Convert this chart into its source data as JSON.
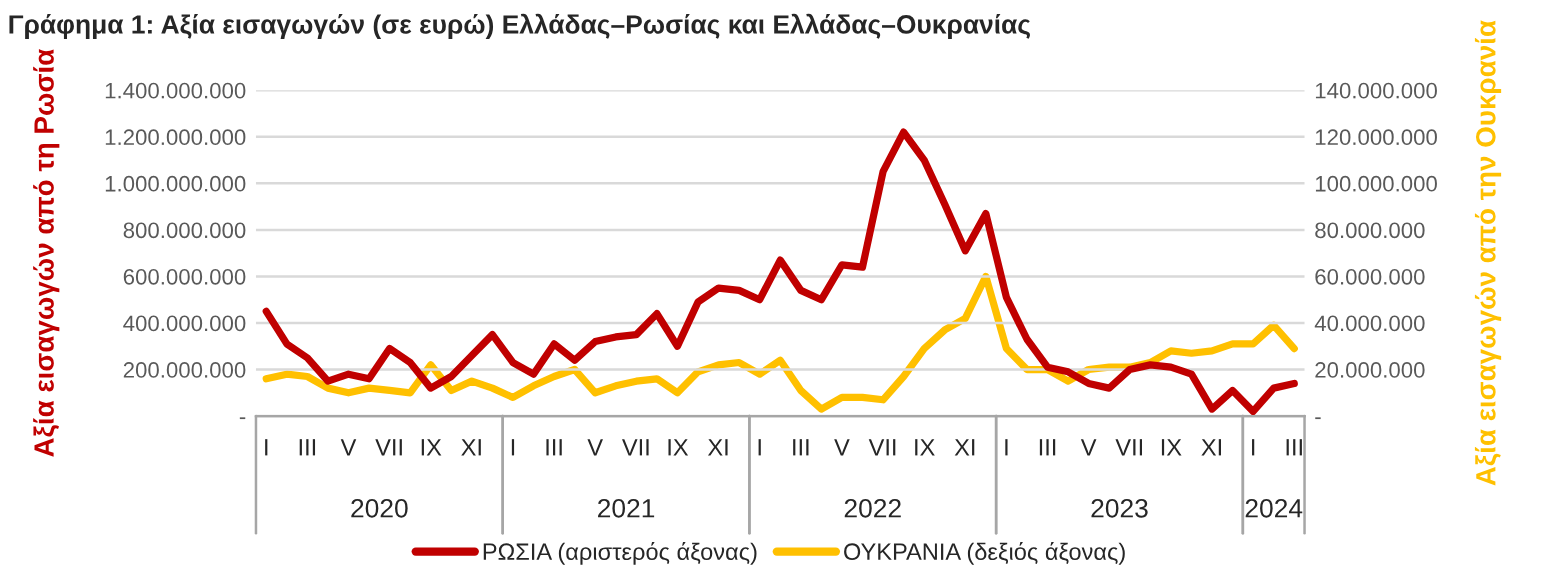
{
  "chart_data": {
    "type": "line",
    "title": "Γράφημα 1: Αξία εισαγωγών (σε ευρώ) Ελλάδας–Ρωσίας και Ελλάδας–Ουκρανίας",
    "ylabel": "Αξία εισαγωγών από τη Ρωσία",
    "y2label": "Αξία εισαγωγών από την Ουκρανία",
    "categories": [
      "I",
      null,
      "III",
      null,
      "V",
      null,
      "VII",
      null,
      "IX",
      null,
      "XI",
      null,
      "I",
      null,
      "III",
      null,
      "V",
      null,
      "VII",
      null,
      "IX",
      null,
      "XI",
      null,
      "I",
      null,
      "III",
      null,
      "V",
      null,
      "VII",
      null,
      "IX",
      null,
      "XI",
      null,
      "I",
      null,
      "III",
      null,
      "V",
      null,
      "VII",
      null,
      "IX",
      null,
      "XI",
      null,
      "I",
      null,
      "III"
    ],
    "annotations": [
      "2020",
      "2021",
      "2022",
      "2023",
      "2024"
    ],
    "series": [
      {
        "name": "ΡΩΣΙΑ (αριστερός άξονας)",
        "color": "#c00000",
        "values": [
          450000000,
          310000000,
          250000000,
          150000000,
          180000000,
          160000000,
          290000000,
          230000000,
          120000000,
          170000000,
          260000000,
          350000000,
          230000000,
          180000000,
          310000000,
          240000000,
          320000000,
          340000000,
          350000000,
          440000000,
          300000000,
          490000000,
          550000000,
          540000000,
          500000000,
          670000000,
          540000000,
          500000000,
          650000000,
          640000000,
          1050000000,
          1220000000,
          1100000000,
          910000000,
          710000000,
          870000000,
          510000000,
          330000000,
          210000000,
          190000000,
          140000000,
          120000000,
          200000000,
          220000000,
          210000000,
          180000000,
          30000000,
          110000000,
          20000000,
          120000000,
          140000000
        ]
      },
      {
        "name": "ΟΥΚΡΑΝΙΑ (δεξιός άξονας)",
        "color": "#ffc000",
        "axis": "y2",
        "values": [
          16000000,
          18000000,
          17000000,
          12000000,
          10000000,
          12000000,
          11000000,
          10000000,
          22000000,
          11000000,
          15000000,
          12000000,
          8000000,
          13000000,
          17000000,
          20000000,
          10000000,
          13000000,
          15000000,
          16000000,
          10000000,
          19000000,
          22000000,
          23000000,
          18000000,
          24000000,
          11000000,
          3000000,
          8000000,
          8000000,
          7000000,
          17000000,
          29000000,
          37000000,
          42000000,
          60000000,
          29000000,
          20000000,
          20000000,
          15000000,
          20000000,
          21000000,
          21000000,
          23000000,
          28000000,
          27000000,
          28000000,
          31000000,
          31000000,
          39000000,
          29000000
        ]
      }
    ],
    "ylim": [
      0,
      1400000000
    ],
    "yticks": [
      {
        "value": 0,
        "label": "-"
      },
      {
        "value": 200000000,
        "label": "200.000.000"
      },
      {
        "value": 400000000,
        "label": "400.000.000"
      },
      {
        "value": 600000000,
        "label": "600.000.000"
      },
      {
        "value": 800000000,
        "label": "800.000.000"
      },
      {
        "value": 1000000000,
        "label": "1.000.000.000"
      },
      {
        "value": 1200000000,
        "label": "1.200.000.000"
      },
      {
        "value": 1400000000,
        "label": "1.400.000.000"
      }
    ],
    "y2lim": [
      0,
      140000000
    ],
    "y2ticks": [
      {
        "value": 0,
        "label": "-"
      },
      {
        "value": 20000000,
        "label": "20.000.000"
      },
      {
        "value": 40000000,
        "label": "40.000.000"
      },
      {
        "value": 60000000,
        "label": "60.000.000"
      },
      {
        "value": 80000000,
        "label": "80.000.000"
      },
      {
        "value": 100000000,
        "label": "100.000.000"
      },
      {
        "value": 120000000,
        "label": "120.000.000"
      },
      {
        "value": 140000000,
        "label": "140.000.000"
      }
    ],
    "grid": "y",
    "legend": "bottom"
  }
}
